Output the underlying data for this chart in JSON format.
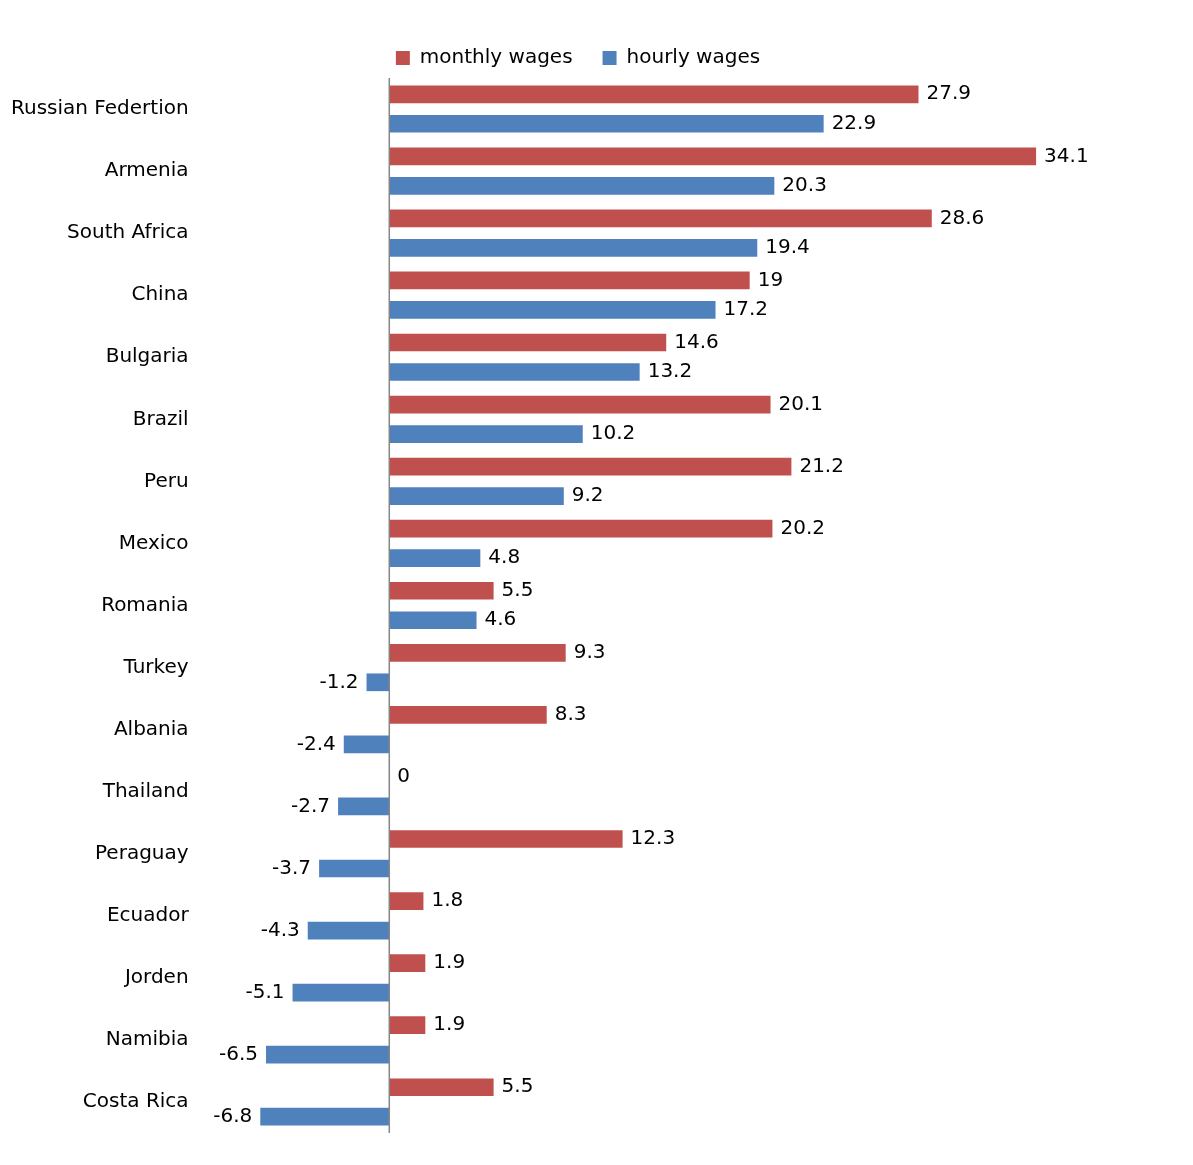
{
  "chart_data": {
    "type": "bar",
    "orientation": "horizontal",
    "data_labels": true,
    "legend": "top",
    "categories": [
      "Russian Federtion",
      "Armenia",
      "South Africa",
      "China",
      "Bulgaria",
      "Brazil",
      "Peru",
      "Mexico",
      "Romania",
      "Turkey",
      "Albania",
      "Thailand",
      "Peraguay",
      "Ecuador",
      "Jorden",
      "Namibia",
      "Costa Rica"
    ],
    "series": [
      {
        "name": "monthly wages",
        "color": "#c0504d",
        "values": [
          27.9,
          34.1,
          28.6,
          19,
          14.6,
          20.1,
          21.2,
          20.2,
          5.5,
          9.3,
          8.3,
          0,
          12.3,
          1.8,
          1.9,
          1.9,
          5.5
        ]
      },
      {
        "name": "hourly wages",
        "color": "#4f81bd",
        "values": [
          22.9,
          20.3,
          19.4,
          17.2,
          13.2,
          10.2,
          9.2,
          4.8,
          4.6,
          -1.2,
          -2.4,
          -2.7,
          -3.7,
          -4.3,
          -5.1,
          -6.5,
          -6.8
        ]
      }
    ]
  }
}
